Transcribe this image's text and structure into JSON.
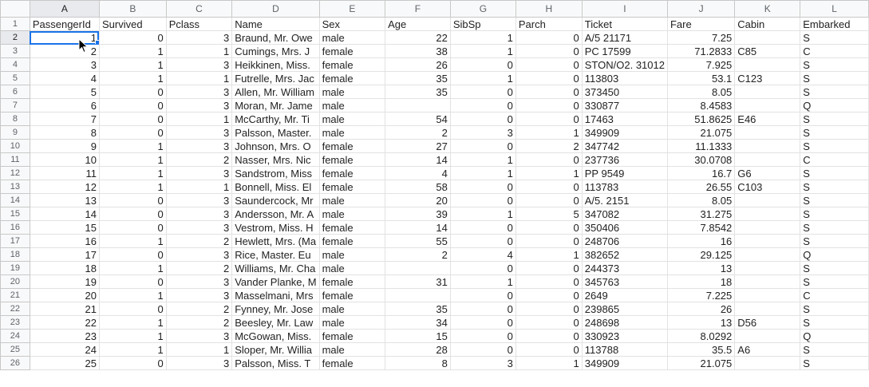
{
  "columns": [
    "A",
    "B",
    "C",
    "D",
    "E",
    "F",
    "G",
    "H",
    "I",
    "J",
    "K",
    "L"
  ],
  "selected_column": "A",
  "selected_row_number": "2",
  "header_row": {
    "number": "1",
    "cells": [
      "PassengerId",
      "Survived",
      "Pclass",
      "Name",
      "Sex",
      "Age",
      "SibSp",
      "Parch",
      "Ticket",
      "Fare",
      "Cabin",
      "Embarked"
    ]
  },
  "rows": [
    {
      "number": "2",
      "cells": [
        "1",
        "0",
        "3",
        "Braund, Mr. Owe",
        "male",
        "22",
        "1",
        "0",
        "A/5 21171",
        "7.25",
        "",
        "S"
      ]
    },
    {
      "number": "3",
      "cells": [
        "2",
        "1",
        "1",
        "Cumings, Mrs. J",
        "female",
        "38",
        "1",
        "0",
        "PC 17599",
        "71.2833",
        "C85",
        "C"
      ]
    },
    {
      "number": "4",
      "cells": [
        "3",
        "1",
        "3",
        "Heikkinen, Miss.",
        "female",
        "26",
        "0",
        "0",
        "STON/O2. 31012",
        "7.925",
        "",
        "S"
      ]
    },
    {
      "number": "5",
      "cells": [
        "4",
        "1",
        "1",
        "Futrelle, Mrs. Jac",
        "female",
        "35",
        "1",
        "0",
        "113803",
        "53.1",
        "C123",
        "S"
      ]
    },
    {
      "number": "6",
      "cells": [
        "5",
        "0",
        "3",
        "Allen, Mr. William",
        "male",
        "35",
        "0",
        "0",
        "373450",
        "8.05",
        "",
        "S"
      ]
    },
    {
      "number": "7",
      "cells": [
        "6",
        "0",
        "3",
        "Moran, Mr. Jame",
        "male",
        "",
        "0",
        "0",
        "330877",
        "8.4583",
        "",
        "Q"
      ]
    },
    {
      "number": "8",
      "cells": [
        "7",
        "0",
        "1",
        "McCarthy, Mr. Ti",
        "male",
        "54",
        "0",
        "0",
        "17463",
        "51.8625",
        "E46",
        "S"
      ]
    },
    {
      "number": "9",
      "cells": [
        "8",
        "0",
        "3",
        "Palsson, Master.",
        "male",
        "2",
        "3",
        "1",
        "349909",
        "21.075",
        "",
        "S"
      ]
    },
    {
      "number": "10",
      "cells": [
        "9",
        "1",
        "3",
        "Johnson, Mrs. O",
        "female",
        "27",
        "0",
        "2",
        "347742",
        "11.1333",
        "",
        "S"
      ]
    },
    {
      "number": "11",
      "cells": [
        "10",
        "1",
        "2",
        "Nasser, Mrs. Nic",
        "female",
        "14",
        "1",
        "0",
        "237736",
        "30.0708",
        "",
        "C"
      ]
    },
    {
      "number": "12",
      "cells": [
        "11",
        "1",
        "3",
        "Sandstrom, Miss",
        "female",
        "4",
        "1",
        "1",
        "PP 9549",
        "16.7",
        "G6",
        "S"
      ]
    },
    {
      "number": "13",
      "cells": [
        "12",
        "1",
        "1",
        "Bonnell, Miss. El",
        "female",
        "58",
        "0",
        "0",
        "113783",
        "26.55",
        "C103",
        "S"
      ]
    },
    {
      "number": "14",
      "cells": [
        "13",
        "0",
        "3",
        "Saundercock, Mr",
        "male",
        "20",
        "0",
        "0",
        "A/5. 2151",
        "8.05",
        "",
        "S"
      ]
    },
    {
      "number": "15",
      "cells": [
        "14",
        "0",
        "3",
        "Andersson, Mr. A",
        "male",
        "39",
        "1",
        "5",
        "347082",
        "31.275",
        "",
        "S"
      ]
    },
    {
      "number": "16",
      "cells": [
        "15",
        "0",
        "3",
        "Vestrom, Miss. H",
        "female",
        "14",
        "0",
        "0",
        "350406",
        "7.8542",
        "",
        "S"
      ]
    },
    {
      "number": "17",
      "cells": [
        "16",
        "1",
        "2",
        "Hewlett, Mrs. (Ma",
        "female",
        "55",
        "0",
        "0",
        "248706",
        "16",
        "",
        "S"
      ]
    },
    {
      "number": "18",
      "cells": [
        "17",
        "0",
        "3",
        "Rice, Master. Eu",
        "male",
        "2",
        "4",
        "1",
        "382652",
        "29.125",
        "",
        "Q"
      ]
    },
    {
      "number": "19",
      "cells": [
        "18",
        "1",
        "2",
        "Williams, Mr. Cha",
        "male",
        "",
        "0",
        "0",
        "244373",
        "13",
        "",
        "S"
      ]
    },
    {
      "number": "20",
      "cells": [
        "19",
        "0",
        "3",
        "Vander Planke, M",
        "female",
        "31",
        "1",
        "0",
        "345763",
        "18",
        "",
        "S"
      ]
    },
    {
      "number": "21",
      "cells": [
        "20",
        "1",
        "3",
        "Masselmani, Mrs",
        "female",
        "",
        "0",
        "0",
        "2649",
        "7.225",
        "",
        "C"
      ]
    },
    {
      "number": "22",
      "cells": [
        "21",
        "0",
        "2",
        "Fynney, Mr. Jose",
        "male",
        "35",
        "0",
        "0",
        "239865",
        "26",
        "",
        "S"
      ]
    },
    {
      "number": "23",
      "cells": [
        "22",
        "1",
        "2",
        "Beesley, Mr. Law",
        "male",
        "34",
        "0",
        "0",
        "248698",
        "13",
        "D56",
        "S"
      ]
    },
    {
      "number": "24",
      "cells": [
        "23",
        "1",
        "3",
        "McGowan, Miss.",
        "female",
        "15",
        "0",
        "0",
        "330923",
        "8.0292",
        "",
        "Q"
      ]
    },
    {
      "number": "25",
      "cells": [
        "24",
        "1",
        "1",
        "Sloper, Mr. Willia",
        "male",
        "28",
        "0",
        "0",
        "113788",
        "35.5",
        "A6",
        "S"
      ]
    },
    {
      "number": "26",
      "cells": [
        "25",
        "0",
        "3",
        "Palsson, Miss. T",
        "female",
        "8",
        "3",
        "1",
        "349909",
        "21.075",
        "",
        "S"
      ]
    }
  ],
  "numeric_columns": [
    0,
    1,
    2,
    5,
    6,
    7,
    9
  ],
  "accent_color": "#1a73e8",
  "cursor_icon": "mouse-pointer-icon"
}
